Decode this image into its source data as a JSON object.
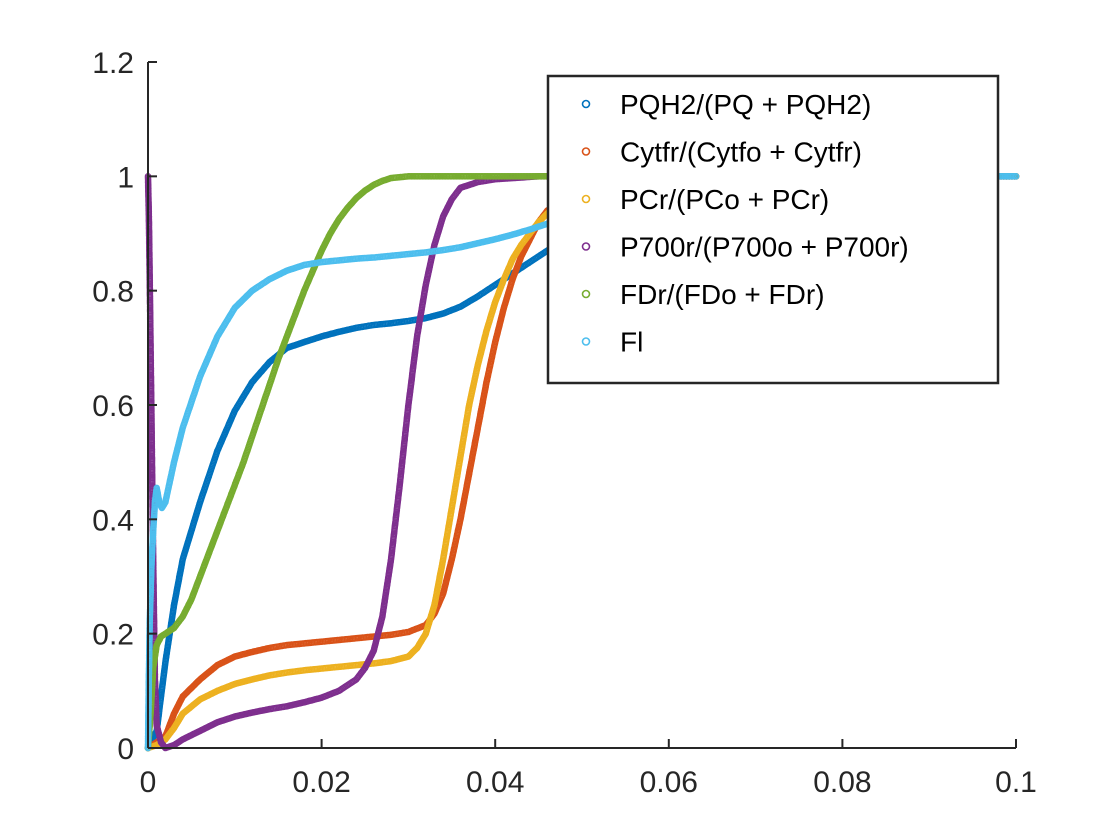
{
  "chart_data": {
    "type": "scatter",
    "title": "",
    "xlabel": "",
    "ylabel": "",
    "xlim": [
      0,
      0.1
    ],
    "ylim": [
      0,
      1.2
    ],
    "xticks": [
      0,
      0.02,
      0.04,
      0.06,
      0.08,
      0.1
    ],
    "xtick_labels": [
      "0",
      "0.02",
      "0.04",
      "0.06",
      "0.08",
      "0.1"
    ],
    "yticks": [
      0,
      0.2,
      0.4,
      0.6,
      0.8,
      1,
      1.2
    ],
    "ytick_labels": [
      "0",
      "0.2",
      "0.4",
      "0.6",
      "0.8",
      "1",
      "1.2"
    ],
    "grid": false,
    "legend_position": "top-right",
    "marker": "open-circle",
    "series": [
      {
        "name": "PQH2/(PQ + PQH2)",
        "color": "#0072BD",
        "points": [
          [
            0,
            0
          ],
          [
            0.001,
            0.03
          ],
          [
            0.002,
            0.15
          ],
          [
            0.003,
            0.25
          ],
          [
            0.004,
            0.33
          ],
          [
            0.006,
            0.43
          ],
          [
            0.008,
            0.52
          ],
          [
            0.01,
            0.59
          ],
          [
            0.012,
            0.64
          ],
          [
            0.014,
            0.675
          ],
          [
            0.016,
            0.7
          ],
          [
            0.018,
            0.71
          ],
          [
            0.02,
            0.72
          ],
          [
            0.022,
            0.728
          ],
          [
            0.024,
            0.735
          ],
          [
            0.026,
            0.74
          ],
          [
            0.028,
            0.743
          ],
          [
            0.03,
            0.747
          ],
          [
            0.032,
            0.752
          ],
          [
            0.034,
            0.76
          ],
          [
            0.036,
            0.772
          ],
          [
            0.038,
            0.79
          ],
          [
            0.04,
            0.81
          ],
          [
            0.042,
            0.83
          ],
          [
            0.044,
            0.85
          ],
          [
            0.046,
            0.87
          ],
          [
            0.048,
            0.89
          ],
          [
            0.05,
            0.92
          ],
          [
            0.055,
            0.96
          ],
          [
            0.06,
            0.98
          ],
          [
            0.07,
            0.995
          ],
          [
            0.08,
            1.0
          ],
          [
            0.09,
            1.0
          ],
          [
            0.1,
            1.0
          ]
        ]
      },
      {
        "name": "Cytfr/(Cytfo + Cytfr)",
        "color": "#D95319",
        "points": [
          [
            0,
            0
          ],
          [
            0.001,
            0.01
          ],
          [
            0.002,
            0.02
          ],
          [
            0.003,
            0.06
          ],
          [
            0.004,
            0.09
          ],
          [
            0.006,
            0.12
          ],
          [
            0.008,
            0.145
          ],
          [
            0.01,
            0.16
          ],
          [
            0.012,
            0.168
          ],
          [
            0.014,
            0.175
          ],
          [
            0.016,
            0.18
          ],
          [
            0.018,
            0.183
          ],
          [
            0.02,
            0.186
          ],
          [
            0.022,
            0.189
          ],
          [
            0.024,
            0.192
          ],
          [
            0.026,
            0.195
          ],
          [
            0.028,
            0.198
          ],
          [
            0.03,
            0.203
          ],
          [
            0.032,
            0.215
          ],
          [
            0.033,
            0.235
          ],
          [
            0.034,
            0.27
          ],
          [
            0.035,
            0.33
          ],
          [
            0.036,
            0.4
          ],
          [
            0.037,
            0.48
          ],
          [
            0.038,
            0.56
          ],
          [
            0.039,
            0.64
          ],
          [
            0.04,
            0.71
          ],
          [
            0.041,
            0.77
          ],
          [
            0.042,
            0.82
          ],
          [
            0.043,
            0.86
          ],
          [
            0.044,
            0.89
          ],
          [
            0.045,
            0.92
          ],
          [
            0.046,
            0.94
          ],
          [
            0.048,
            0.96
          ],
          [
            0.05,
            0.98
          ],
          [
            0.055,
            0.99
          ],
          [
            0.06,
            1.0
          ],
          [
            0.07,
            1.0
          ],
          [
            0.08,
            1.0
          ],
          [
            0.09,
            1.0
          ],
          [
            0.1,
            1.0
          ]
        ]
      },
      {
        "name": "PCr/(PCo + PCr)",
        "color": "#EDB120",
        "points": [
          [
            0,
            0
          ],
          [
            0.001,
            0.005
          ],
          [
            0.002,
            0.015
          ],
          [
            0.003,
            0.035
          ],
          [
            0.004,
            0.06
          ],
          [
            0.006,
            0.085
          ],
          [
            0.008,
            0.1
          ],
          [
            0.01,
            0.112
          ],
          [
            0.012,
            0.12
          ],
          [
            0.014,
            0.127
          ],
          [
            0.016,
            0.132
          ],
          [
            0.018,
            0.136
          ],
          [
            0.02,
            0.139
          ],
          [
            0.022,
            0.142
          ],
          [
            0.024,
            0.145
          ],
          [
            0.026,
            0.148
          ],
          [
            0.028,
            0.152
          ],
          [
            0.03,
            0.16
          ],
          [
            0.031,
            0.175
          ],
          [
            0.032,
            0.2
          ],
          [
            0.033,
            0.25
          ],
          [
            0.034,
            0.33
          ],
          [
            0.035,
            0.42
          ],
          [
            0.036,
            0.51
          ],
          [
            0.037,
            0.6
          ],
          [
            0.038,
            0.67
          ],
          [
            0.039,
            0.73
          ],
          [
            0.04,
            0.78
          ],
          [
            0.041,
            0.82
          ],
          [
            0.042,
            0.855
          ],
          [
            0.043,
            0.88
          ],
          [
            0.044,
            0.9
          ],
          [
            0.045,
            0.92
          ],
          [
            0.046,
            0.935
          ],
          [
            0.048,
            0.96
          ],
          [
            0.05,
            0.98
          ],
          [
            0.055,
            0.99
          ],
          [
            0.06,
            1.0
          ],
          [
            0.07,
            1.0
          ],
          [
            0.08,
            1.0
          ],
          [
            0.09,
            1.0
          ],
          [
            0.1,
            1.0
          ]
        ]
      },
      {
        "name": "P700r/(P700o + P700r)",
        "color": "#7E2F8E",
        "points": [
          [
            0,
            1.0
          ],
          [
            0.0001,
            0.93
          ],
          [
            0.0002,
            0.82
          ],
          [
            0.0003,
            0.7
          ],
          [
            0.0004,
            0.58
          ],
          [
            0.0005,
            0.45
          ],
          [
            0.0006,
            0.33
          ],
          [
            0.0007,
            0.22
          ],
          [
            0.0008,
            0.12
          ],
          [
            0.001,
            0.04
          ],
          [
            0.0015,
            0.01
          ],
          [
            0.002,
            0.0
          ],
          [
            0.003,
            0.005
          ],
          [
            0.004,
            0.015
          ],
          [
            0.006,
            0.03
          ],
          [
            0.008,
            0.045
          ],
          [
            0.01,
            0.055
          ],
          [
            0.012,
            0.062
          ],
          [
            0.014,
            0.068
          ],
          [
            0.016,
            0.073
          ],
          [
            0.018,
            0.08
          ],
          [
            0.02,
            0.088
          ],
          [
            0.022,
            0.1
          ],
          [
            0.024,
            0.12
          ],
          [
            0.025,
            0.14
          ],
          [
            0.026,
            0.17
          ],
          [
            0.027,
            0.23
          ],
          [
            0.028,
            0.33
          ],
          [
            0.029,
            0.46
          ],
          [
            0.03,
            0.6
          ],
          [
            0.031,
            0.72
          ],
          [
            0.032,
            0.81
          ],
          [
            0.033,
            0.88
          ],
          [
            0.034,
            0.93
          ],
          [
            0.035,
            0.96
          ],
          [
            0.036,
            0.98
          ],
          [
            0.038,
            0.99
          ],
          [
            0.04,
            0.995
          ],
          [
            0.045,
            1.0
          ],
          [
            0.05,
            1.0
          ],
          [
            0.06,
            1.0
          ],
          [
            0.08,
            1.0
          ],
          [
            0.1,
            1.0
          ]
        ]
      },
      {
        "name": "FDr/(FDo + FDr)",
        "color": "#77AC30",
        "points": [
          [
            0,
            0
          ],
          [
            0.0003,
            0.06
          ],
          [
            0.0006,
            0.14
          ],
          [
            0.001,
            0.18
          ],
          [
            0.0015,
            0.195
          ],
          [
            0.002,
            0.2
          ],
          [
            0.003,
            0.21
          ],
          [
            0.004,
            0.23
          ],
          [
            0.005,
            0.26
          ],
          [
            0.006,
            0.3
          ],
          [
            0.007,
            0.34
          ],
          [
            0.008,
            0.38
          ],
          [
            0.009,
            0.42
          ],
          [
            0.01,
            0.46
          ],
          [
            0.011,
            0.5
          ],
          [
            0.012,
            0.545
          ],
          [
            0.013,
            0.59
          ],
          [
            0.014,
            0.635
          ],
          [
            0.015,
            0.68
          ],
          [
            0.016,
            0.72
          ],
          [
            0.017,
            0.76
          ],
          [
            0.018,
            0.8
          ],
          [
            0.019,
            0.835
          ],
          [
            0.02,
            0.87
          ],
          [
            0.021,
            0.9
          ],
          [
            0.022,
            0.925
          ],
          [
            0.023,
            0.945
          ],
          [
            0.024,
            0.962
          ],
          [
            0.025,
            0.975
          ],
          [
            0.026,
            0.985
          ],
          [
            0.027,
            0.992
          ],
          [
            0.028,
            0.997
          ],
          [
            0.03,
            1.0
          ],
          [
            0.035,
            1.0
          ],
          [
            0.04,
            1.0
          ],
          [
            0.045,
            1.0
          ],
          [
            0.05,
            1.0
          ],
          [
            0.06,
            1.0
          ],
          [
            0.08,
            1.0
          ],
          [
            0.1,
            1.0
          ]
        ]
      },
      {
        "name": "Fl",
        "color": "#4DBEEE",
        "points": [
          [
            0,
            0.0
          ],
          [
            0.0001,
            0.12
          ],
          [
            0.0002,
            0.22
          ],
          [
            0.0004,
            0.32
          ],
          [
            0.0006,
            0.38
          ],
          [
            0.0008,
            0.43
          ],
          [
            0.001,
            0.455
          ],
          [
            0.0013,
            0.43
          ],
          [
            0.0016,
            0.42
          ],
          [
            0.002,
            0.43
          ],
          [
            0.003,
            0.5
          ],
          [
            0.004,
            0.56
          ],
          [
            0.006,
            0.65
          ],
          [
            0.008,
            0.72
          ],
          [
            0.01,
            0.77
          ],
          [
            0.012,
            0.8
          ],
          [
            0.014,
            0.82
          ],
          [
            0.016,
            0.835
          ],
          [
            0.018,
            0.845
          ],
          [
            0.02,
            0.85
          ],
          [
            0.022,
            0.853
          ],
          [
            0.024,
            0.856
          ],
          [
            0.026,
            0.858
          ],
          [
            0.028,
            0.861
          ],
          [
            0.03,
            0.864
          ],
          [
            0.032,
            0.867
          ],
          [
            0.034,
            0.871
          ],
          [
            0.036,
            0.876
          ],
          [
            0.038,
            0.883
          ],
          [
            0.04,
            0.89
          ],
          [
            0.042,
            0.898
          ],
          [
            0.044,
            0.907
          ],
          [
            0.046,
            0.917
          ],
          [
            0.048,
            0.928
          ],
          [
            0.05,
            0.94
          ],
          [
            0.055,
            0.965
          ],
          [
            0.06,
            0.98
          ],
          [
            0.07,
            0.993
          ],
          [
            0.08,
            0.998
          ],
          [
            0.09,
            1.0
          ],
          [
            0.1,
            1.0
          ]
        ]
      }
    ]
  }
}
